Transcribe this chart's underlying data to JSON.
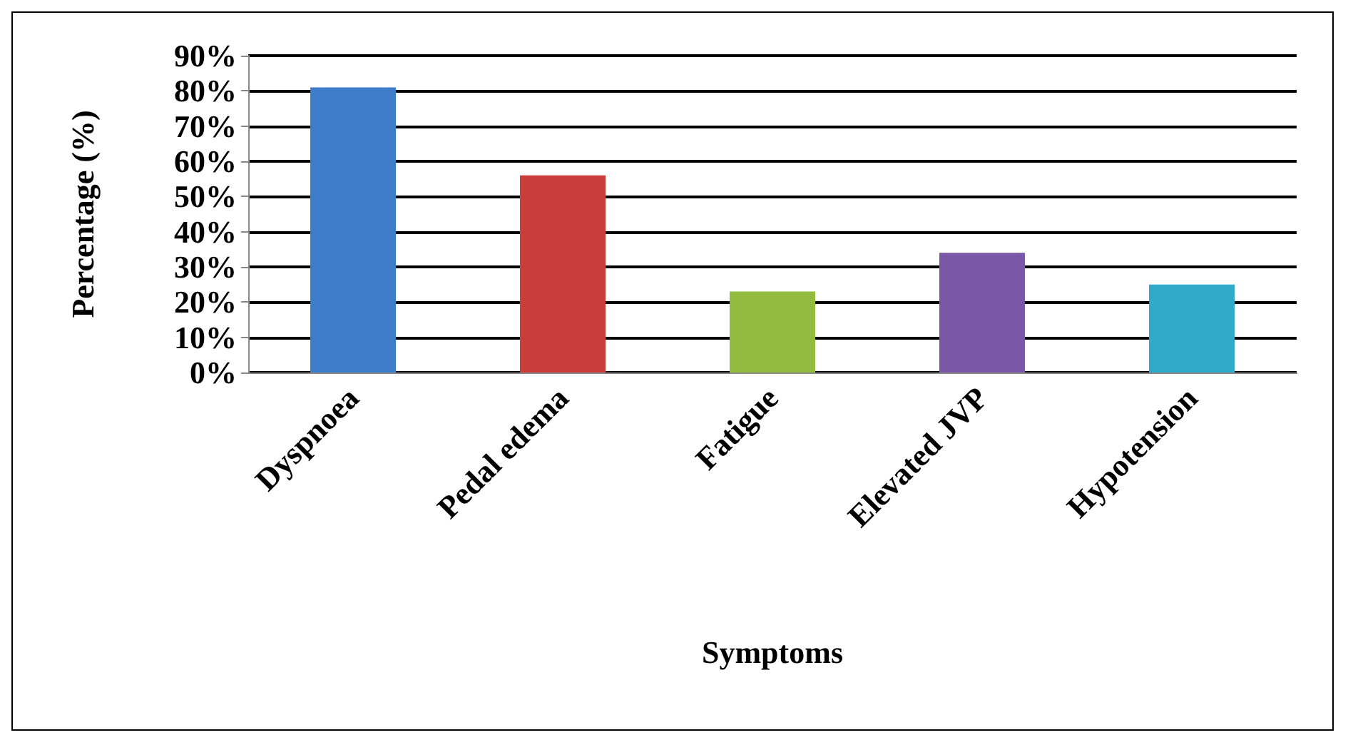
{
  "chart_data": {
    "type": "bar",
    "xlabel": "Symptoms",
    "ylabel": "Percentage (%)",
    "categories": [
      "Dyspnoea",
      "Pedal edema",
      "Fatigue",
      "Elevated JVP",
      "Hypotension"
    ],
    "values": [
      81,
      56,
      23,
      34,
      25
    ],
    "colors": [
      "#3d7cc9",
      "#c93e3b",
      "#93bc3e",
      "#7b57a8",
      "#31a9c9"
    ],
    "ylim": [
      0,
      90
    ],
    "yticks": [
      {
        "value": 0,
        "label": "0%"
      },
      {
        "value": 10,
        "label": "10%"
      },
      {
        "value": 20,
        "label": "20%"
      },
      {
        "value": 30,
        "label": "30%"
      },
      {
        "value": 40,
        "label": "40%"
      },
      {
        "value": 50,
        "label": "50%"
      },
      {
        "value": 60,
        "label": "60%"
      },
      {
        "value": 70,
        "label": "70%"
      },
      {
        "value": 80,
        "label": "80%"
      },
      {
        "value": 90,
        "label": "90%"
      }
    ],
    "grid": "y"
  }
}
